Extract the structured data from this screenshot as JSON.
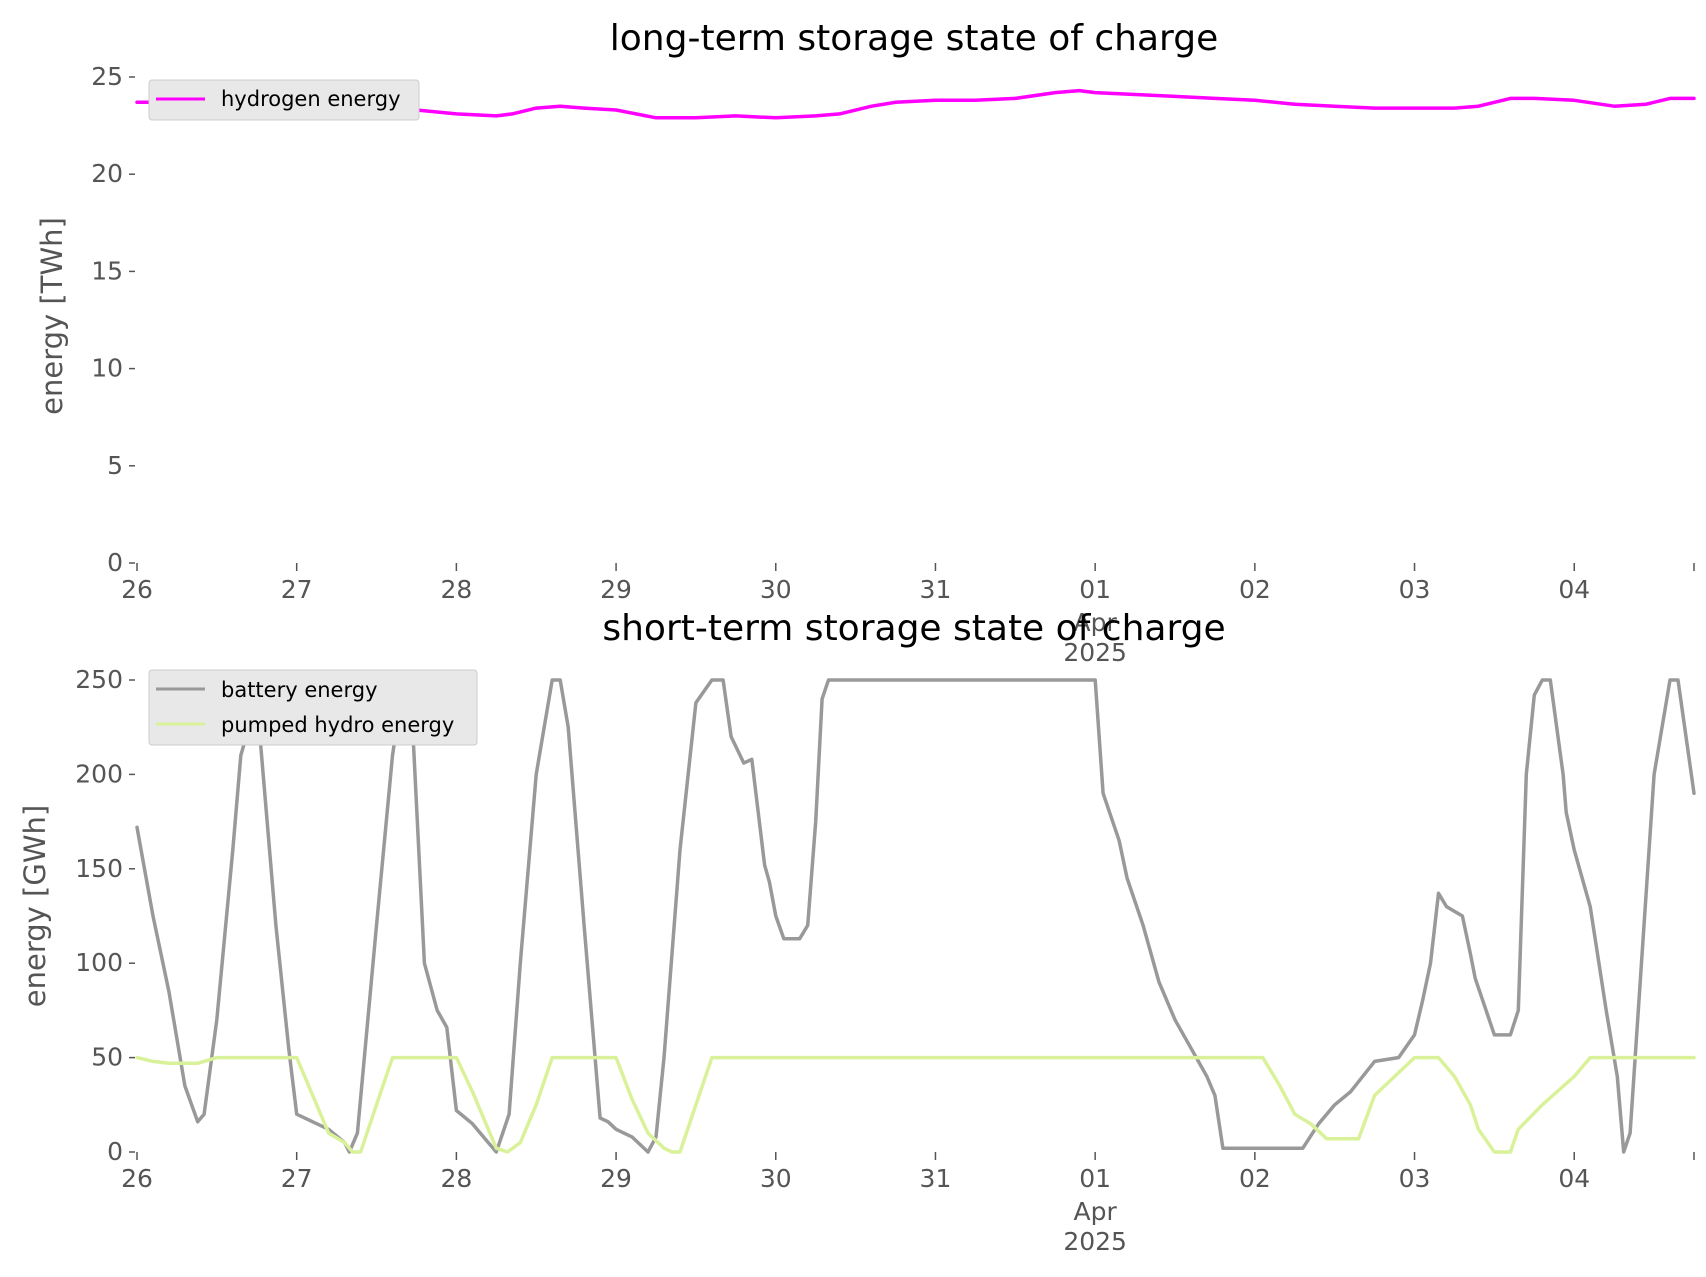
{
  "chart_data": [
    {
      "type": "line",
      "title": "long-term storage state of charge",
      "ylabel": "energy [TWh]",
      "xlabel": "",
      "x_ticks": [
        "26",
        "27",
        "28",
        "29",
        "30",
        "31",
        "01",
        "02",
        "03",
        "04"
      ],
      "x_tick_month": "Apr",
      "x_tick_year": "2025",
      "x_range_days": [
        0,
        9.75
      ],
      "ylim": [
        0,
        25
      ],
      "y_ticks": [
        "0",
        "5",
        "10",
        "15",
        "20",
        "25"
      ],
      "grid": false,
      "legend_position": "upper-left",
      "series": [
        {
          "name": "hydrogen energy",
          "color": "#ff00ff",
          "x": [
            0,
            0.25,
            0.5,
            0.75,
            1.0,
            1.25,
            1.4,
            1.6,
            1.75,
            2.0,
            2.25,
            2.35,
            2.5,
            2.65,
            2.8,
            3.0,
            3.25,
            3.5,
            3.75,
            4.0,
            4.25,
            4.4,
            4.6,
            4.75,
            5.0,
            5.25,
            5.5,
            5.75,
            5.9,
            6.0,
            6.25,
            6.5,
            6.75,
            7.0,
            7.25,
            7.5,
            7.75,
            8.0,
            8.25,
            8.4,
            8.6,
            8.75,
            9.0,
            9.25,
            9.45,
            9.6,
            9.75
          ],
          "y": [
            23.7,
            23.7,
            23.6,
            23.6,
            23.5,
            23.0,
            23.0,
            23.2,
            23.3,
            23.1,
            23.0,
            23.1,
            23.4,
            23.5,
            23.4,
            23.3,
            22.9,
            22.9,
            23.0,
            22.9,
            23.0,
            23.1,
            23.5,
            23.7,
            23.8,
            23.8,
            23.9,
            24.2,
            24.3,
            24.2,
            24.1,
            24.0,
            23.9,
            23.8,
            23.6,
            23.5,
            23.4,
            23.4,
            23.4,
            23.5,
            23.9,
            23.9,
            23.8,
            23.5,
            23.6,
            23.9,
            23.9
          ]
        }
      ]
    },
    {
      "type": "line",
      "title": "short-term storage state of charge",
      "ylabel": "energy [GWh]",
      "xlabel": "",
      "x_ticks": [
        "26",
        "27",
        "28",
        "29",
        "30",
        "31",
        "01",
        "02",
        "03",
        "04"
      ],
      "x_tick_month": "Apr",
      "x_tick_year": "2025",
      "x_range_days": [
        0,
        9.75
      ],
      "ylim": [
        0,
        250
      ],
      "y_ticks": [
        "0",
        "50",
        "100",
        "150",
        "200",
        "250"
      ],
      "grid": false,
      "legend_position": "upper-left",
      "series": [
        {
          "name": "battery energy",
          "color": "#999999",
          "x": [
            0,
            0.1,
            0.2,
            0.25,
            0.3,
            0.38,
            0.42,
            0.5,
            0.6,
            0.65,
            0.75,
            0.87,
            0.95,
            1.0,
            1.1,
            1.2,
            1.3,
            1.33,
            1.38,
            1.5,
            1.6,
            1.67,
            1.72,
            1.8,
            1.88,
            1.94,
            2.0,
            2.1,
            2.2,
            2.25,
            2.33,
            2.4,
            2.5,
            2.6,
            2.65,
            2.7,
            2.8,
            2.9,
            2.95,
            3.0,
            3.1,
            3.2,
            3.25,
            3.3,
            3.4,
            3.5,
            3.6,
            3.67,
            3.72,
            3.8,
            3.85,
            3.93,
            3.96,
            4.0,
            4.05,
            4.15,
            4.2,
            4.25,
            4.29,
            4.33,
            4.38,
            4.5,
            4.6,
            4.66,
            6.0,
            6.05,
            6.15,
            6.2,
            6.3,
            6.4,
            6.5,
            6.6,
            6.7,
            6.75,
            6.8,
            7.0,
            7.25,
            7.3,
            7.4,
            7.5,
            7.6,
            7.75,
            7.9,
            8.0,
            8.05,
            8.1,
            8.15,
            8.2,
            8.3,
            8.35,
            8.38,
            8.5,
            8.6,
            8.65,
            8.7,
            8.75,
            8.8,
            8.85,
            8.93,
            8.95,
            9.0,
            9.1,
            9.2,
            9.27,
            9.31,
            9.35,
            9.5,
            9.6,
            9.65,
            9.7,
            9.75
          ],
          "y": [
            172,
            125,
            85,
            60,
            35,
            16,
            20,
            70,
            160,
            210,
            240,
            120,
            55,
            20,
            16,
            12,
            5,
            0,
            10,
            120,
            210,
            250,
            235,
            100,
            75,
            66,
            22,
            15,
            5,
            0,
            20,
            100,
            200,
            250,
            250,
            225,
            120,
            18,
            16,
            12,
            8,
            0,
            8,
            50,
            160,
            238,
            250,
            250,
            220,
            206,
            208,
            152,
            143,
            125,
            113,
            113,
            120,
            175,
            240,
            250,
            250,
            250,
            250,
            250,
            250,
            190,
            165,
            145,
            120,
            90,
            70,
            55,
            40,
            30,
            2,
            2,
            2,
            2,
            15,
            25,
            32,
            48,
            50,
            62,
            80,
            100,
            137,
            130,
            125,
            105,
            92,
            62,
            62,
            75,
            200,
            242,
            250,
            250,
            200,
            180,
            160,
            130,
            75,
            40,
            0,
            10,
            200,
            250,
            250,
            220,
            190
          ],
          "x_unused_note": ""
        },
        {
          "name": "pumped hydro energy",
          "color": "#d9f29a",
          "x": [
            0,
            0.1,
            0.2,
            0.38,
            0.5,
            0.55,
            0.95,
            1.0,
            1.1,
            1.2,
            1.3,
            1.35,
            1.4,
            1.5,
            1.6,
            1.65,
            2.0,
            2.1,
            2.2,
            2.25,
            2.32,
            2.4,
            2.5,
            2.6,
            2.65,
            2.9,
            3.0,
            3.1,
            3.2,
            3.3,
            3.35,
            3.4,
            3.5,
            3.6,
            3.65,
            7.0,
            7.05,
            7.15,
            7.25,
            7.35,
            7.45,
            7.5,
            7.65,
            7.75,
            8.0,
            8.05,
            8.15,
            8.25,
            8.35,
            8.4,
            8.5,
            8.6,
            8.65,
            8.8,
            9.0,
            9.1,
            9.2,
            9.28,
            9.32,
            9.35,
            9.45,
            9.55,
            9.6,
            9.75
          ],
          "y": [
            50,
            48,
            47,
            47,
            50,
            50,
            50,
            50,
            30,
            10,
            5,
            0,
            0,
            25,
            50,
            50,
            50,
            32,
            12,
            2,
            0,
            5,
            25,
            50,
            50,
            50,
            50,
            28,
            10,
            2,
            0,
            0,
            25,
            50,
            50,
            50,
            50,
            36,
            20,
            15,
            7,
            7,
            7,
            30,
            50,
            50,
            50,
            40,
            25,
            12,
            0,
            0,
            12,
            25,
            40,
            50,
            50,
            50,
            50,
            50,
            50,
            50,
            50,
            50
          ]
        }
      ]
    }
  ]
}
